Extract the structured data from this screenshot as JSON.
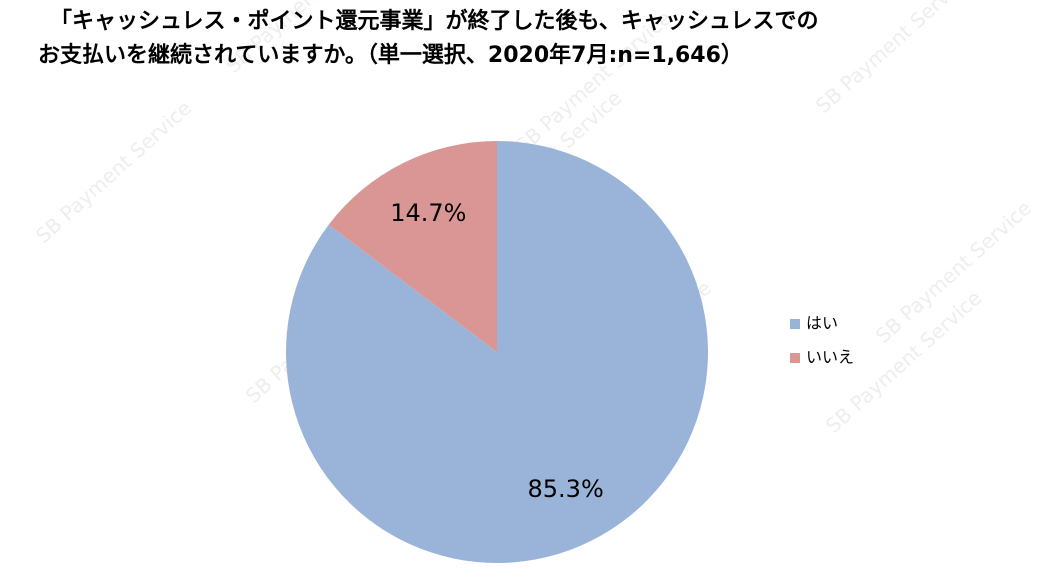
{
  "chart_data": {
    "type": "pie",
    "title": [
      "「キャッシュレス・ポイント還元事業」が終了した後も、キャッシュレスでの",
      "お支払いを継続されていますか。（単一選択、2020年7月:n=1,646）"
    ],
    "categories": [
      "はい",
      "いいえ"
    ],
    "values": [
      85.3,
      14.7
    ],
    "value_labels": [
      "85.3%",
      "14.7%"
    ],
    "colors": [
      "#9ab4d9",
      "#d99694"
    ],
    "legend": "right",
    "watermark": "SB Payment Service"
  }
}
